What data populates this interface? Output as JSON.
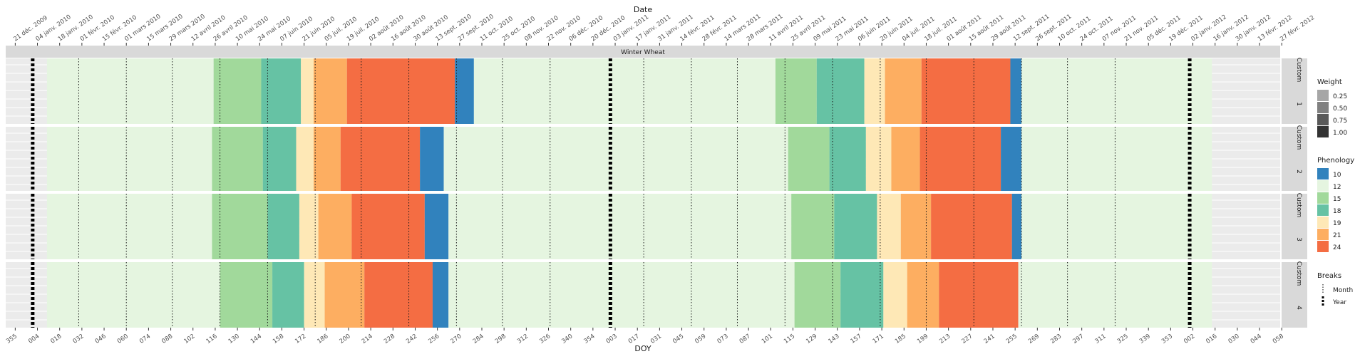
{
  "chart_data": {
    "type": "bar",
    "orientation": "horizontal-timeline",
    "title": "",
    "facet_title": "Winter Wheat",
    "top_axis_title": "Date",
    "xlabel": "DOY",
    "panel_labels": [
      "1",
      "2",
      "3",
      "4"
    ],
    "panel_prefix": "Custom",
    "x_domain": [
      "2009-12-15",
      "2012-02-26"
    ],
    "top_ticks": [
      "2009-12-21",
      "2010-01-04",
      "2010-01-18",
      "2010-02-01",
      "2010-02-15",
      "2010-03-01",
      "2010-03-15",
      "2010-03-29",
      "2010-04-12",
      "2010-04-26",
      "2010-05-10",
      "2010-05-24",
      "2010-06-07",
      "2010-06-21",
      "2010-07-05",
      "2010-07-19",
      "2010-08-02",
      "2010-08-16",
      "2010-08-30",
      "2010-09-13",
      "2010-09-27",
      "2010-10-11",
      "2010-10-25",
      "2010-11-08",
      "2010-11-22",
      "2010-12-06",
      "2010-12-20",
      "2011-01-03",
      "2011-01-17",
      "2011-01-31",
      "2011-02-14",
      "2011-02-28",
      "2011-03-14",
      "2011-03-28",
      "2011-04-11",
      "2011-04-25",
      "2011-05-09",
      "2011-05-23",
      "2011-06-06",
      "2011-06-20",
      "2011-07-04",
      "2011-07-18",
      "2011-08-01",
      "2011-08-15",
      "2011-08-29",
      "2011-09-12",
      "2011-09-26",
      "2011-10-10",
      "2011-10-24",
      "2011-11-07",
      "2011-11-21",
      "2011-12-05",
      "2011-12-19",
      "2012-01-02",
      "2012-01-16",
      "2012-01-30",
      "2012-02-13",
      "2012-02-27"
    ],
    "top_tick_labels": [
      "21 déc. 2009",
      "04 janv. 2010",
      "18 janv. 2010",
      "01 févr. 2010",
      "15 févr. 2010",
      "01 mars 2010",
      "15 mars 2010",
      "29 mars 2010",
      "12 avril 2010",
      "26 avril 2010",
      "10 mai 2010",
      "24 mai 2010",
      "07 juin 2010",
      "21 juin 2010",
      "05 juil. 2010",
      "19 juil. 2010",
      "02 août 2010",
      "16 août 2010",
      "30 août 2010",
      "13 sept. 2010",
      "27 sept. 2010",
      "11 oct. 2010",
      "25 oct. 2010",
      "08 nov. 2010",
      "22 nov. 2010",
      "06 déc. 2010",
      "20 déc. 2010",
      "03 janv. 2011",
      "17 janv. 2011",
      "31 janv. 2011",
      "14 févr. 2011",
      "28 févr. 2011",
      "14 mars 2011",
      "28 mars 2011",
      "11 avril 2011",
      "25 avril 2011",
      "09 mai 2011",
      "23 mai 2011",
      "06 juin 2011",
      "20 juin 2011",
      "04 juil. 2011",
      "18 juil. 2011",
      "01 août 2011",
      "15 août 2011",
      "29 août 2011",
      "12 sept. 2011",
      "26 sept. 2011",
      "10 oct. 2011",
      "24 oct. 2011",
      "07 nov. 2011",
      "21 nov. 2011",
      "05 déc. 2011",
      "19 déc. 2011",
      "02 janv. 2012",
      "16 janv. 2012",
      "30 janv. 2012",
      "13 févr. 2012",
      "27 févr. 2012"
    ],
    "bottom_ticks": [
      "2009-12-21",
      "2010-01-04",
      "2010-01-18",
      "2010-02-01",
      "2010-02-15",
      "2010-03-01",
      "2010-03-15",
      "2010-03-29",
      "2010-04-12",
      "2010-04-26",
      "2010-05-10",
      "2010-05-24",
      "2010-06-07",
      "2010-06-21",
      "2010-07-05",
      "2010-07-19",
      "2010-08-02",
      "2010-08-16",
      "2010-08-30",
      "2010-09-13",
      "2010-09-27",
      "2010-10-11",
      "2010-10-25",
      "2010-11-08",
      "2010-11-22",
      "2010-12-06",
      "2010-12-20",
      "2011-01-03",
      "2011-01-17",
      "2011-01-31",
      "2011-02-14",
      "2011-02-28",
      "2011-03-14",
      "2011-03-28",
      "2011-04-11",
      "2011-04-25",
      "2011-05-09",
      "2011-05-23",
      "2011-06-06",
      "2011-06-20",
      "2011-07-04",
      "2011-07-18",
      "2011-08-01",
      "2011-08-15",
      "2011-08-29",
      "2011-09-12",
      "2011-09-26",
      "2011-10-10",
      "2011-10-24",
      "2011-11-07",
      "2011-11-21",
      "2011-12-05",
      "2011-12-19",
      "2012-01-02",
      "2012-01-16",
      "2012-01-30",
      "2012-02-13",
      "2012-02-27"
    ],
    "bottom_tick_labels": [
      "355",
      "004",
      "018",
      "032",
      "046",
      "060",
      "074",
      "088",
      "102",
      "116",
      "130",
      "144",
      "158",
      "172",
      "186",
      "200",
      "214",
      "228",
      "242",
      "256",
      "270",
      "284",
      "298",
      "312",
      "326",
      "340",
      "354",
      "003",
      "017",
      "031",
      "045",
      "059",
      "073",
      "087",
      "101",
      "115",
      "129",
      "143",
      "157",
      "171",
      "185",
      "199",
      "213",
      "227",
      "241",
      "255",
      "269",
      "283",
      "297",
      "311",
      "325",
      "339",
      "353",
      "002",
      "016",
      "030",
      "044",
      "058"
    ],
    "month_breaks": [
      "2010-01-30",
      "2010-03-01",
      "2010-03-30",
      "2010-04-29",
      "2010-05-29",
      "2010-06-28",
      "2010-07-27",
      "2010-08-26",
      "2010-09-25",
      "2010-10-24",
      "2010-11-23",
      "2011-01-21",
      "2011-02-20",
      "2011-03-21",
      "2011-04-20",
      "2011-05-20",
      "2011-06-19",
      "2011-07-18",
      "2011-08-17",
      "2011-09-16",
      "2011-10-15",
      "2011-11-14"
    ],
    "year_breaks": [
      "2010-01-01",
      "2010-12-31",
      "2011-12-31"
    ],
    "panels": [
      {
        "label": "1",
        "segments": [
          {
            "start": "2009-12-15",
            "end": "2010-01-10",
            "class": null
          },
          {
            "start": "2010-01-10",
            "end": "2010-04-25",
            "class": 12
          },
          {
            "start": "2010-04-25",
            "end": "2010-05-25",
            "class": 15
          },
          {
            "start": "2010-05-25",
            "end": "2010-06-19",
            "class": 18
          },
          {
            "start": "2010-06-19",
            "end": "2010-06-27",
            "class": 19
          },
          {
            "start": "2010-06-27",
            "end": "2010-07-18",
            "class": 21
          },
          {
            "start": "2010-07-18",
            "end": "2010-09-24",
            "class": 24
          },
          {
            "start": "2010-09-24",
            "end": "2010-10-06",
            "class": 10
          },
          {
            "start": "2010-10-06",
            "end": "2011-04-14",
            "class": 12
          },
          {
            "start": "2011-04-14",
            "end": "2011-05-10",
            "class": 15
          },
          {
            "start": "2011-05-10",
            "end": "2011-06-09",
            "class": 18
          },
          {
            "start": "2011-06-09",
            "end": "2011-06-22",
            "class": 19
          },
          {
            "start": "2011-06-22",
            "end": "2011-07-15",
            "class": 21
          },
          {
            "start": "2011-07-15",
            "end": "2011-09-09",
            "class": 24
          },
          {
            "start": "2011-09-09",
            "end": "2011-09-16",
            "class": 10
          },
          {
            "start": "2011-09-16",
            "end": "2012-01-14",
            "class": 12
          },
          {
            "start": "2012-01-14",
            "end": "2012-02-26",
            "class": null
          }
        ]
      },
      {
        "label": "2",
        "segments": [
          {
            "start": "2009-12-15",
            "end": "2010-01-10",
            "class": null
          },
          {
            "start": "2010-01-10",
            "end": "2010-04-24",
            "class": 12
          },
          {
            "start": "2010-04-24",
            "end": "2010-05-26",
            "class": 15
          },
          {
            "start": "2010-05-26",
            "end": "2010-06-16",
            "class": 18
          },
          {
            "start": "2010-06-16",
            "end": "2010-06-27",
            "class": 19
          },
          {
            "start": "2010-06-27",
            "end": "2010-07-14",
            "class": 21
          },
          {
            "start": "2010-07-14",
            "end": "2010-09-02",
            "class": 24
          },
          {
            "start": "2010-09-02",
            "end": "2010-09-17",
            "class": 10
          },
          {
            "start": "2010-09-17",
            "end": "2011-04-22",
            "class": 12
          },
          {
            "start": "2011-04-22",
            "end": "2011-05-18",
            "class": 15
          },
          {
            "start": "2011-05-18",
            "end": "2011-06-10",
            "class": 18
          },
          {
            "start": "2011-06-10",
            "end": "2011-06-26",
            "class": 19
          },
          {
            "start": "2011-06-26",
            "end": "2011-07-14",
            "class": 21
          },
          {
            "start": "2011-07-14",
            "end": "2011-09-03",
            "class": 24
          },
          {
            "start": "2011-09-03",
            "end": "2011-09-16",
            "class": 10
          },
          {
            "start": "2011-09-16",
            "end": "2012-01-14",
            "class": 12
          },
          {
            "start": "2012-01-14",
            "end": "2012-02-26",
            "class": null
          }
        ]
      },
      {
        "label": "3",
        "segments": [
          {
            "start": "2009-12-15",
            "end": "2010-01-10",
            "class": null
          },
          {
            "start": "2010-01-10",
            "end": "2010-04-24",
            "class": 12
          },
          {
            "start": "2010-04-24",
            "end": "2010-05-29",
            "class": 15
          },
          {
            "start": "2010-05-29",
            "end": "2010-06-18",
            "class": 18
          },
          {
            "start": "2010-06-18",
            "end": "2010-06-30",
            "class": 19
          },
          {
            "start": "2010-06-30",
            "end": "2010-07-21",
            "class": 21
          },
          {
            "start": "2010-07-21",
            "end": "2010-09-05",
            "class": 24
          },
          {
            "start": "2010-09-05",
            "end": "2010-09-20",
            "class": 10
          },
          {
            "start": "2010-09-20",
            "end": "2011-04-24",
            "class": 12
          },
          {
            "start": "2011-04-24",
            "end": "2011-05-21",
            "class": 15
          },
          {
            "start": "2011-05-21",
            "end": "2011-06-17",
            "class": 18
          },
          {
            "start": "2011-06-17",
            "end": "2011-07-02",
            "class": 19
          },
          {
            "start": "2011-07-02",
            "end": "2011-07-21",
            "class": 21
          },
          {
            "start": "2011-07-21",
            "end": "2011-09-10",
            "class": 24
          },
          {
            "start": "2011-09-10",
            "end": "2011-09-16",
            "class": 10
          },
          {
            "start": "2011-09-16",
            "end": "2012-01-14",
            "class": 12
          },
          {
            "start": "2012-01-14",
            "end": "2012-02-26",
            "class": null
          }
        ]
      },
      {
        "label": "4",
        "segments": [
          {
            "start": "2009-12-15",
            "end": "2010-01-10",
            "class": null
          },
          {
            "start": "2010-01-10",
            "end": "2010-04-29",
            "class": 12
          },
          {
            "start": "2010-04-29",
            "end": "2010-06-01",
            "class": 15
          },
          {
            "start": "2010-06-01",
            "end": "2010-06-21",
            "class": 18
          },
          {
            "start": "2010-06-21",
            "end": "2010-07-04",
            "class": 19
          },
          {
            "start": "2010-07-04",
            "end": "2010-07-29",
            "class": 21
          },
          {
            "start": "2010-07-29",
            "end": "2010-09-10",
            "class": 24
          },
          {
            "start": "2010-09-10",
            "end": "2010-09-20",
            "class": 10
          },
          {
            "start": "2010-09-20",
            "end": "2011-04-26",
            "class": 12
          },
          {
            "start": "2011-04-26",
            "end": "2011-05-25",
            "class": 15
          },
          {
            "start": "2011-05-25",
            "end": "2011-06-21",
            "class": 18
          },
          {
            "start": "2011-06-21",
            "end": "2011-07-06",
            "class": 19
          },
          {
            "start": "2011-07-06",
            "end": "2011-07-26",
            "class": 21
          },
          {
            "start": "2011-07-26",
            "end": "2011-09-14",
            "class": 24
          },
          {
            "start": "2011-09-14",
            "end": "2012-01-14",
            "class": 12
          },
          {
            "start": "2012-01-14",
            "end": "2012-02-26",
            "class": null
          }
        ]
      }
    ],
    "phenology_legend": {
      "title": "Phenology",
      "items": [
        {
          "label": "10",
          "color": "#3182bd"
        },
        {
          "label": "12",
          "color": "#e5f5e0"
        },
        {
          "label": "15",
          "color": "#a1d99b"
        },
        {
          "label": "18",
          "color": "#66c2a4"
        },
        {
          "label": "19",
          "color": "#fee8b6"
        },
        {
          "label": "21",
          "color": "#fdae61"
        },
        {
          "label": "24",
          "color": "#f46d43"
        }
      ]
    },
    "weight_legend": {
      "title": "Weight",
      "items": [
        {
          "label": "0.25",
          "color": "#a6a6a6"
        },
        {
          "label": "0.50",
          "color": "#808080"
        },
        {
          "label": "0.75",
          "color": "#595959"
        },
        {
          "label": "1.00",
          "color": "#333333"
        }
      ]
    },
    "breaks_legend": {
      "title": "Breaks",
      "items": [
        {
          "label": "Month",
          "style": "dotted"
        },
        {
          "label": "Year",
          "style": "dashed-thick"
        }
      ]
    },
    "colors": {
      "panel_background": "#ebebeb",
      "strip_background": "#d9d9d9",
      "strip_text": "#1a1a1a"
    }
  }
}
